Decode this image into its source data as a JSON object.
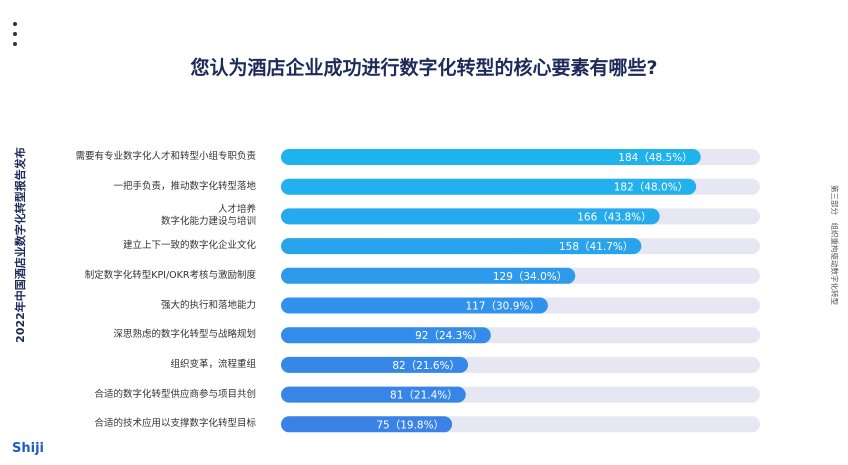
{
  "report_title": "2022年中国酒店业数字化转型报告发布",
  "section": "第三部分　组织重构驱动数字化转型",
  "logo": "Shiji",
  "chart_data": {
    "type": "bar",
    "orientation": "horizontal",
    "title": "您认为酒店企业成功进行数字化转型的核心要素有哪些?",
    "categories": [
      "需要有专业数字化人才和转型小组专职负责",
      "一把手负责，推动数字化转型落地",
      "人才培养\n数字化能力建设与培训",
      "建立上下一致的数字化企业文化",
      "制定数字化转型KPI/OKR考核与激励制度",
      "强大的执行和落地能力",
      "深思熟虑的数字化转型与战略规划",
      "组织变革，流程重组",
      "合适的数字化转型供应商参与项目共创",
      "合适的技术应用以支撑数字化转型目标"
    ],
    "values": [
      184,
      182,
      166,
      158,
      129,
      117,
      92,
      82,
      81,
      75
    ],
    "value_labels": [
      "184（48.5%）",
      "182（48.0%）",
      "166（43.8%）",
      "158（41.7%）",
      "129（34.0%）",
      "117（30.9%）",
      "92（24.3%）",
      "82（21.6%）",
      "81（21.4%）",
      "75（19.8%）"
    ],
    "colors": [
      "#1fb3ee",
      "#22b0ee",
      "#25aaed",
      "#29a3ec",
      "#2d9aeb",
      "#3092ea",
      "#338ce9",
      "#3688e8",
      "#3885e8",
      "#3a82e7"
    ],
    "track_color": "#e6e7f3",
    "xlim": [
      0,
      210
    ]
  }
}
